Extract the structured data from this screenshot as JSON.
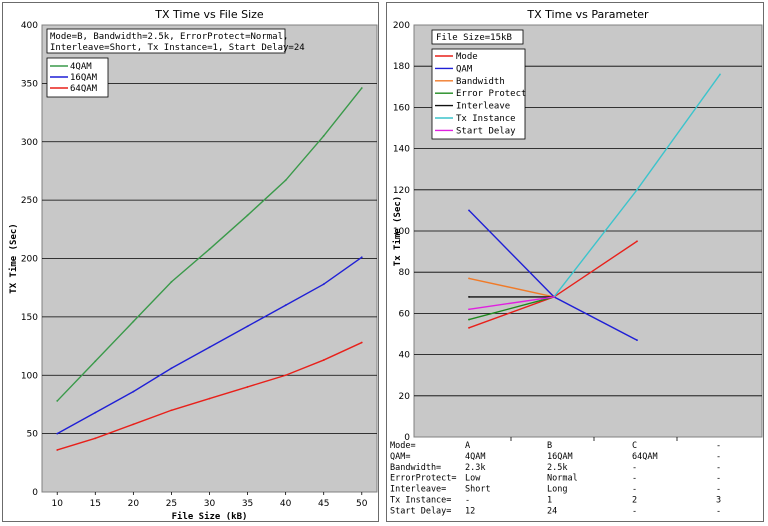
{
  "chart_data": [
    {
      "type": "line",
      "title": "TX Time vs File Size",
      "xlabel": "File Size (kB)",
      "ylabel": "TX Time (Sec)",
      "x": [
        10,
        15,
        20,
        25,
        30,
        35,
        40,
        45,
        50
      ],
      "xlim": [
        8,
        52
      ],
      "ylim": [
        0,
        400
      ],
      "yticks": [
        0,
        50,
        100,
        150,
        200,
        250,
        300,
        350,
        400
      ],
      "grid": "horizontal",
      "legend_placement": "top-left",
      "conditions": [
        "Mode=B, Bandwidth=2.5k, ErrorProtect=Normal,",
        "Interleave=Short, Tx Instance=1, Start Delay=24"
      ],
      "series": [
        {
          "name": "4QAM",
          "color": "#3a9a4a",
          "values": [
            78,
            112,
            146,
            180,
            208,
            237,
            267,
            305,
            346
          ]
        },
        {
          "name": "16QAM",
          "color": "#1f1fd6",
          "values": [
            50,
            68,
            86,
            106,
            124,
            142,
            160,
            178,
            201
          ]
        },
        {
          "name": "64QAM",
          "color": "#e8201a",
          "values": [
            36,
            46,
            58,
            70,
            80,
            90,
            100,
            113,
            128
          ]
        }
      ]
    },
    {
      "type": "line",
      "title": "TX Time vs Parameter",
      "xlabel": "",
      "ylabel": "Tx Time (Sec)",
      "x_positions": [
        0,
        1,
        2,
        3
      ],
      "ylim": [
        0,
        200
      ],
      "yticks": [
        0,
        20,
        40,
        60,
        80,
        100,
        120,
        140,
        160,
        180,
        200
      ],
      "grid": "horizontal",
      "legend_placement": "top-left",
      "file_size_label": "File Size=15kB",
      "series": [
        {
          "name": "Mode",
          "color": "#e8201a",
          "points": [
            [
              0,
              53
            ],
            [
              1,
              68
            ],
            [
              2,
              95
            ]
          ]
        },
        {
          "name": "QAM",
          "color": "#1f1fd6",
          "points": [
            [
              0,
              110
            ],
            [
              1,
              68
            ],
            [
              2,
              47
            ]
          ]
        },
        {
          "name": "Bandwidth",
          "color": "#f07a28",
          "points": [
            [
              0,
              77
            ],
            [
              1,
              68
            ]
          ]
        },
        {
          "name": "Error Protect",
          "color": "#1e8a1e",
          "points": [
            [
              0,
              57
            ],
            [
              1,
              68
            ]
          ]
        },
        {
          "name": "Interleave",
          "color": "#111111",
          "points": [
            [
              0,
              68
            ],
            [
              1,
              68
            ]
          ]
        },
        {
          "name": "Tx Instance",
          "color": "#3cc4cc",
          "points": [
            [
              1,
              68
            ],
            [
              2,
              120
            ],
            [
              3,
              176
            ]
          ]
        },
        {
          "name": "Start Delay",
          "color": "#e020e0",
          "points": [
            [
              0,
              62
            ],
            [
              1,
              68
            ]
          ]
        }
      ],
      "table": [
        [
          "Mode=",
          "A",
          "B",
          "C",
          "-"
        ],
        [
          "QAM=",
          "4QAM",
          "16QAM",
          "64QAM",
          "-"
        ],
        [
          "Bandwidth=",
          "2.3k",
          "2.5k",
          "-",
          "-"
        ],
        [
          "ErrorProtect=",
          "Low",
          "Normal",
          "-",
          "-"
        ],
        [
          "Interleave=",
          "Short",
          "Long",
          "-",
          "-"
        ],
        [
          "Tx Instance=",
          "-",
          "1",
          "2",
          "3"
        ],
        [
          "Start Delay=",
          "12",
          "24",
          "-",
          "-"
        ]
      ]
    }
  ]
}
